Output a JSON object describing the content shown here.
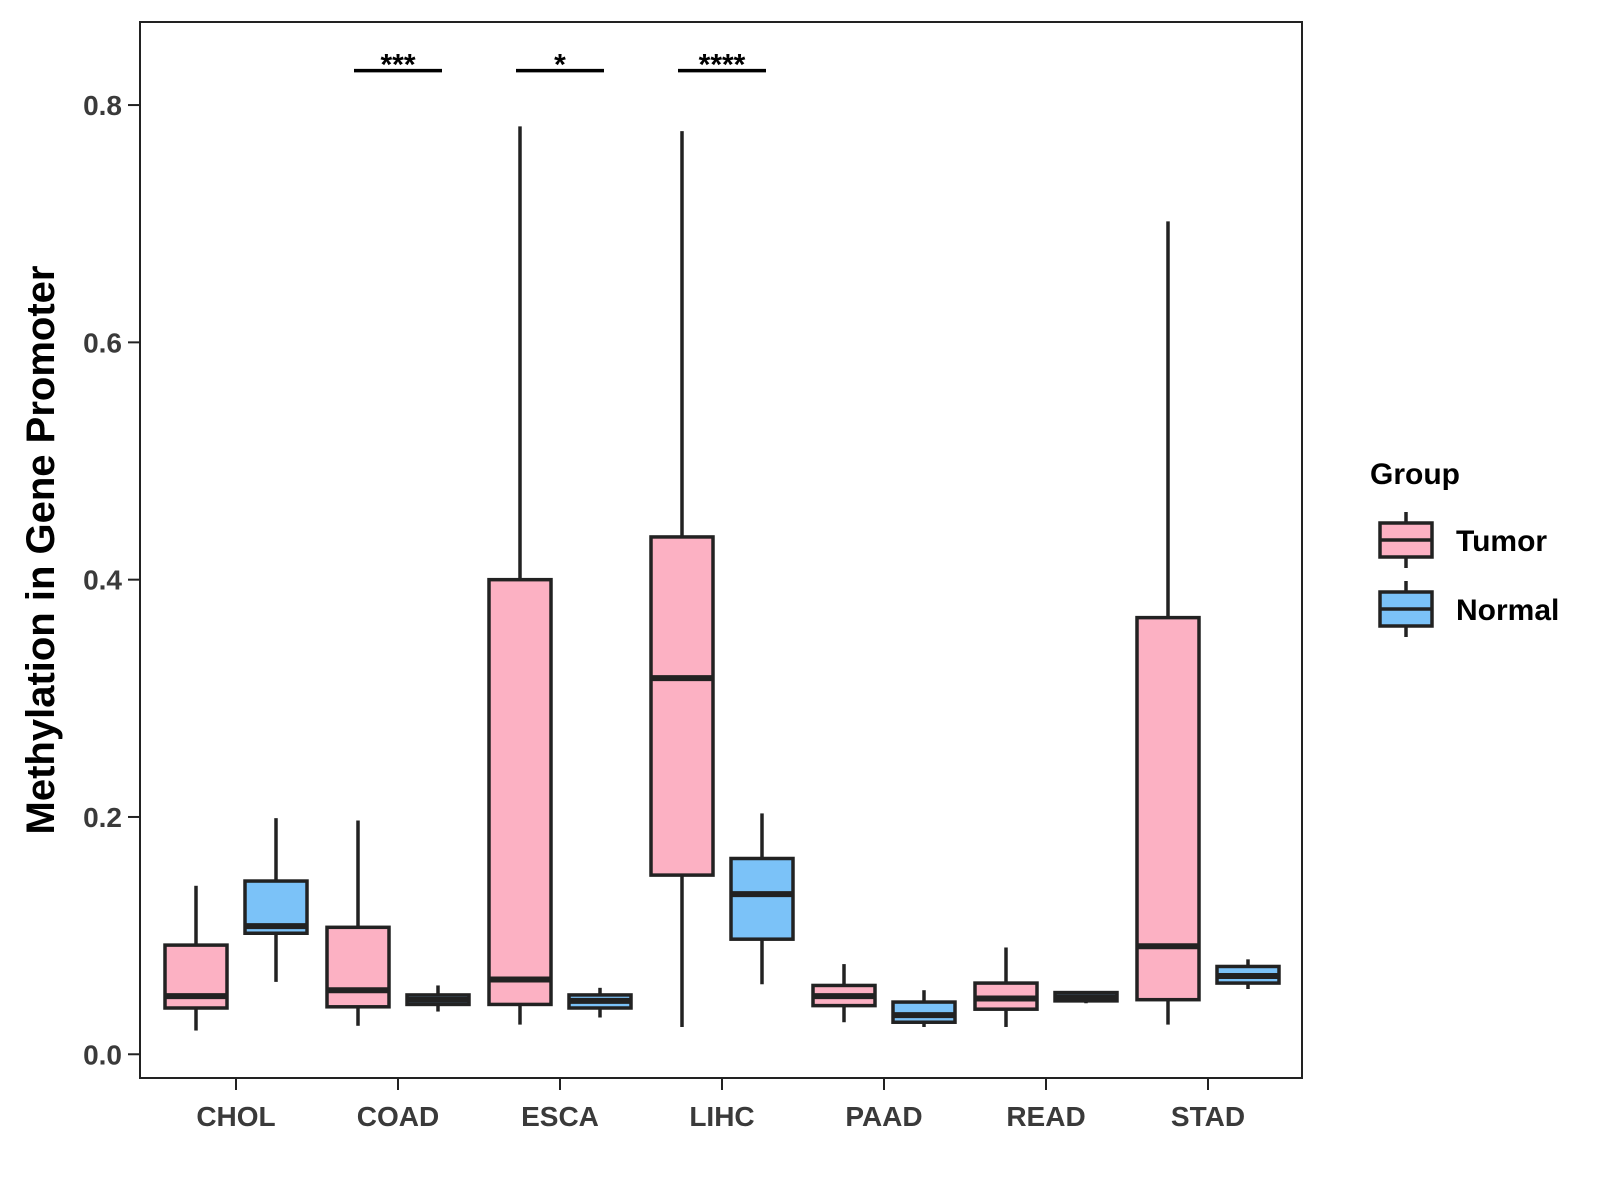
{
  "chart_data": {
    "type": "box",
    "title": "",
    "xlabel": "",
    "ylabel": "Methylation in Gene Promoter",
    "ylim": [
      -0.02,
      0.87
    ],
    "yticks": [
      0.0,
      0.2,
      0.4,
      0.6,
      0.8
    ],
    "ytick_labels": [
      "0.0",
      "0.2",
      "0.4",
      "0.6",
      "0.8"
    ],
    "categories": [
      "CHOL",
      "COAD",
      "ESCA",
      "LIHC",
      "PAAD",
      "READ",
      "STAD"
    ],
    "legend": {
      "title": "Group",
      "position": "right",
      "entries": [
        {
          "name": "Tumor",
          "color": "#FCB1C3"
        },
        {
          "name": "Normal",
          "color": "#7BC2F8"
        }
      ]
    },
    "series": [
      {
        "name": "Tumor",
        "color": "#FCB1C3",
        "boxes": [
          {
            "min": 0.02,
            "q1": 0.039,
            "median": 0.049,
            "q3": 0.092,
            "max": 0.142
          },
          {
            "min": 0.024,
            "q1": 0.04,
            "median": 0.054,
            "q3": 0.107,
            "max": 0.197
          },
          {
            "min": 0.025,
            "q1": 0.042,
            "median": 0.063,
            "q3": 0.4,
            "max": 0.782
          },
          {
            "min": 0.023,
            "q1": 0.151,
            "median": 0.317,
            "q3": 0.436,
            "max": 0.778
          },
          {
            "min": 0.027,
            "q1": 0.041,
            "median": 0.049,
            "q3": 0.058,
            "max": 0.076
          },
          {
            "min": 0.023,
            "q1": 0.038,
            "median": 0.047,
            "q3": 0.06,
            "max": 0.09
          },
          {
            "min": 0.025,
            "q1": 0.046,
            "median": 0.091,
            "q3": 0.368,
            "max": 0.702
          }
        ]
      },
      {
        "name": "Normal",
        "color": "#7BC2F8",
        "boxes": [
          {
            "min": 0.061,
            "q1": 0.102,
            "median": 0.108,
            "q3": 0.146,
            "max": 0.199
          },
          {
            "min": 0.036,
            "q1": 0.042,
            "median": 0.046,
            "q3": 0.05,
            "max": 0.058
          },
          {
            "min": 0.031,
            "q1": 0.039,
            "median": 0.045,
            "q3": 0.05,
            "max": 0.056
          },
          {
            "min": 0.059,
            "q1": 0.097,
            "median": 0.135,
            "q3": 0.165,
            "max": 0.203
          },
          {
            "min": 0.023,
            "q1": 0.027,
            "median": 0.033,
            "q3": 0.044,
            "max": 0.054
          },
          {
            "min": 0.043,
            "q1": 0.045,
            "median": 0.048,
            "q3": 0.052,
            "max": 0.053
          },
          {
            "min": 0.055,
            "q1": 0.06,
            "median": 0.066,
            "q3": 0.074,
            "max": 0.08
          }
        ]
      }
    ],
    "annotations": [
      {
        "category": "COAD",
        "text": "***",
        "y": 0.829
      },
      {
        "category": "ESCA",
        "text": "*",
        "y": 0.829
      },
      {
        "category": "LIHC",
        "text": "****",
        "y": 0.829
      }
    ]
  }
}
